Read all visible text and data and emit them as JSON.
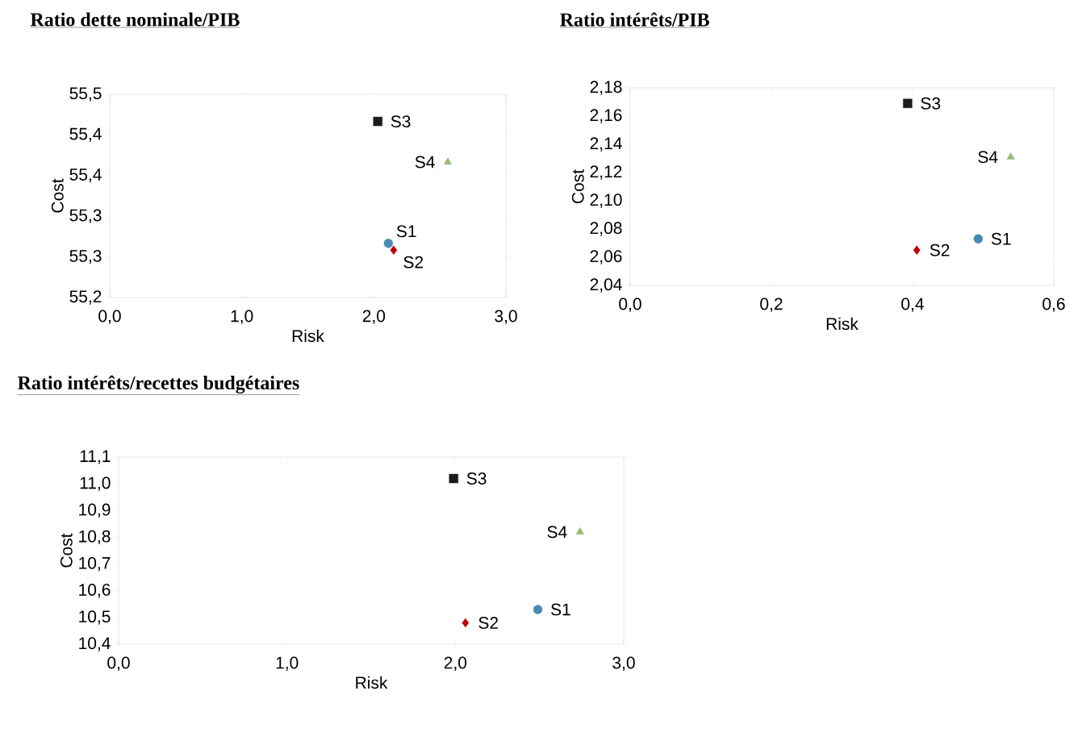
{
  "chart_data": [
    {
      "type": "scatter",
      "title": "Ratio dette nominale/PIB",
      "xlabel": "Risk",
      "ylabel": "Cost",
      "xlim": [
        0,
        3
      ],
      "ylim": [
        55.2,
        55.5
      ],
      "xticks": [
        {
          "value": 0,
          "label": "0,0"
        },
        {
          "value": 1,
          "label": "1,0"
        },
        {
          "value": 2,
          "label": "2,0"
        },
        {
          "value": 3,
          "label": "3,0"
        }
      ],
      "yticks": [
        {
          "value": 55.2,
          "label": "55,2"
        },
        {
          "value": 55.26,
          "label": "55,3"
        },
        {
          "value": 55.32,
          "label": "55,3"
        },
        {
          "value": 55.38,
          "label": "55,4"
        },
        {
          "value": 55.44,
          "label": "55,4"
        },
        {
          "value": 55.5,
          "label": "55,5"
        }
      ],
      "series": [
        {
          "name": "S1",
          "color": "#4a8ab0",
          "marker": "circle",
          "x": [
            2.11
          ],
          "values": [
            55.28
          ]
        },
        {
          "name": "S2",
          "color": "#c00000",
          "marker": "diamond",
          "x": [
            2.15
          ],
          "values": [
            55.27
          ]
        },
        {
          "name": "S3",
          "color": "#1f1a1a",
          "marker": "square",
          "x": [
            2.03
          ],
          "values": [
            55.46
          ]
        },
        {
          "name": "S4",
          "color": "#93bb74",
          "marker": "triangle",
          "x": [
            2.56
          ],
          "values": [
            55.4
          ]
        }
      ]
    },
    {
      "type": "scatter",
      "title": "Ratio intérêts/PIB",
      "xlabel": "Risk",
      "ylabel": "Cost",
      "xlim": [
        0,
        0.6
      ],
      "ylim": [
        2.04,
        2.18
      ],
      "xticks": [
        {
          "value": 0,
          "label": "0,0"
        },
        {
          "value": 0.2,
          "label": "0,2"
        },
        {
          "value": 0.4,
          "label": "0,4"
        },
        {
          "value": 0.6,
          "label": "0,6"
        }
      ],
      "yticks": [
        {
          "value": 2.04,
          "label": "2,04"
        },
        {
          "value": 2.06,
          "label": "2,06"
        },
        {
          "value": 2.08,
          "label": "2,08"
        },
        {
          "value": 2.1,
          "label": "2,10"
        },
        {
          "value": 2.12,
          "label": "2,12"
        },
        {
          "value": 2.14,
          "label": "2,14"
        },
        {
          "value": 2.16,
          "label": "2,16"
        },
        {
          "value": 2.18,
          "label": "2,18"
        }
      ],
      "series": [
        {
          "name": "S1",
          "color": "#4a8ab0",
          "marker": "circle",
          "x": [
            0.493
          ],
          "values": [
            2.073
          ]
        },
        {
          "name": "S2",
          "color": "#c00000",
          "marker": "diamond",
          "x": [
            0.406
          ],
          "values": [
            2.065
          ]
        },
        {
          "name": "S3",
          "color": "#1f1a1a",
          "marker": "square",
          "x": [
            0.393
          ],
          "values": [
            2.169
          ]
        },
        {
          "name": "S4",
          "color": "#93bb74",
          "marker": "triangle",
          "x": [
            0.539
          ],
          "values": [
            2.131
          ]
        }
      ]
    },
    {
      "type": "scatter",
      "title": "Ratio intérêts/recettes budgétaires",
      "xlabel": "Risk",
      "ylabel": "Cost",
      "xlim": [
        0,
        3
      ],
      "ylim": [
        10.4,
        11.1
      ],
      "xticks": [
        {
          "value": 0,
          "label": "0,0"
        },
        {
          "value": 1,
          "label": "1,0"
        },
        {
          "value": 2,
          "label": "2,0"
        },
        {
          "value": 3,
          "label": "3,0"
        }
      ],
      "yticks": [
        {
          "value": 10.4,
          "label": "10,4"
        },
        {
          "value": 10.5,
          "label": "10,5"
        },
        {
          "value": 10.6,
          "label": "10,6"
        },
        {
          "value": 10.7,
          "label": "10,7"
        },
        {
          "value": 10.8,
          "label": "10,8"
        },
        {
          "value": 10.9,
          "label": "10,9"
        },
        {
          "value": 11.0,
          "label": "11,0"
        },
        {
          "value": 11.1,
          "label": "11,1"
        }
      ],
      "series": [
        {
          "name": "S1",
          "color": "#4a8ab0",
          "marker": "circle",
          "x": [
            2.49
          ],
          "values": [
            10.53
          ]
        },
        {
          "name": "S2",
          "color": "#c00000",
          "marker": "diamond",
          "x": [
            2.06
          ],
          "values": [
            10.48
          ]
        },
        {
          "name": "S3",
          "color": "#1f1a1a",
          "marker": "square",
          "x": [
            1.99
          ],
          "values": [
            11.02
          ]
        },
        {
          "name": "S4",
          "color": "#93bb74",
          "marker": "triangle",
          "x": [
            2.74
          ],
          "values": [
            10.82
          ]
        }
      ]
    }
  ]
}
